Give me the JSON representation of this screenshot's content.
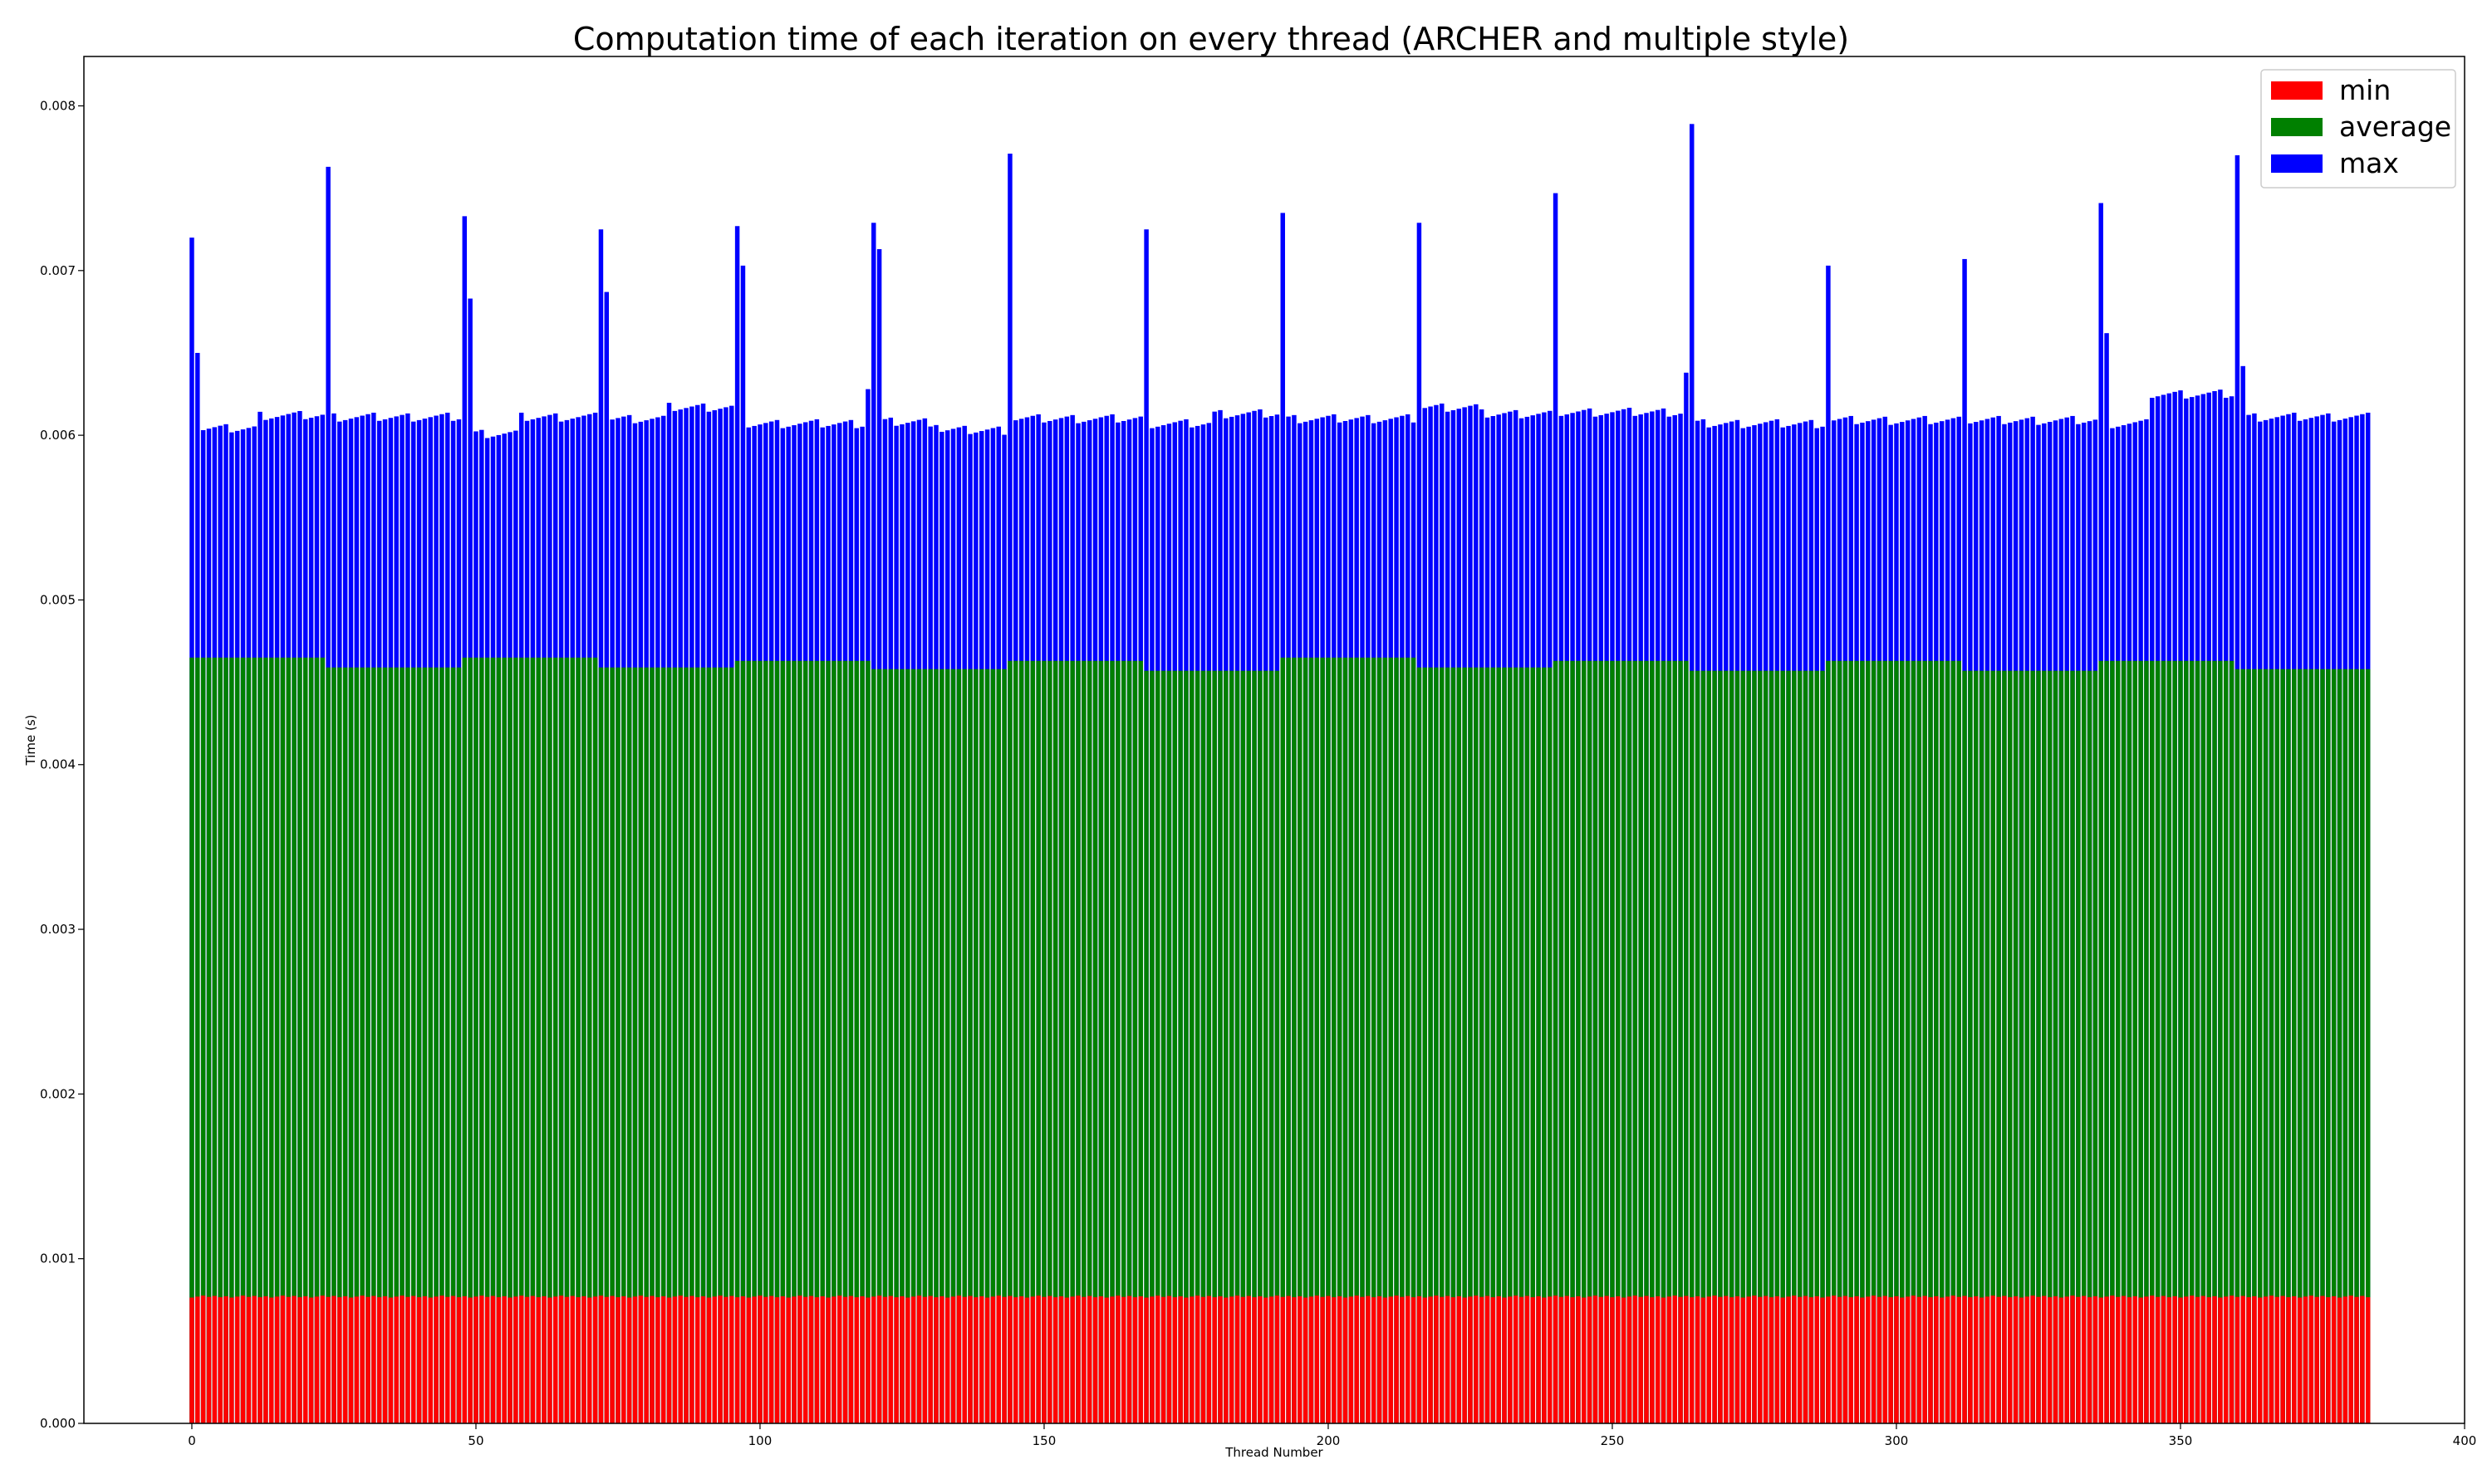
{
  "chart_data": {
    "type": "bar",
    "stacked": true,
    "title": "Computation time of each iteration on every thread (ARCHER and multiple style)",
    "xlabel": "Thread Number",
    "ylabel": "Time (s)",
    "xlim": [
      -19,
      400
    ],
    "ylim": [
      0,
      0.0083
    ],
    "xticks": [
      0,
      50,
      100,
      150,
      200,
      250,
      300,
      350,
      400
    ],
    "yticks": [
      0.0,
      0.001,
      0.002,
      0.003,
      0.004,
      0.005,
      0.006,
      0.007,
      0.008
    ],
    "ytick_labels": [
      "0.000",
      "0.001",
      "0.002",
      "0.003",
      "0.004",
      "0.005",
      "0.006",
      "0.007",
      "0.008"
    ],
    "legend_position": "top-right",
    "colors": {
      "min": "#ff0000",
      "average": "#008000",
      "max": "#0000ff"
    },
    "series": [
      {
        "name": "min",
        "color": "#ff0000",
        "base_value": 0.00077,
        "x_range": [
          0,
          383
        ]
      },
      {
        "name": "average",
        "color": "#008000",
        "value_by_block_of_24": [
          0.00465,
          0.00459,
          0.00465,
          0.00459,
          0.00463,
          0.00458,
          0.00463,
          0.00457,
          0.00465,
          0.00459,
          0.00463,
          0.00457,
          0.00463,
          0.00457,
          0.00463,
          0.00458
        ],
        "x_range": [
          0,
          383
        ]
      },
      {
        "name": "max",
        "color": "#0000ff",
        "typical_value": 0.0061,
        "x_range": [
          0,
          383
        ]
      }
    ],
    "max_spikes": [
      {
        "thread": 0,
        "value": 0.0072
      },
      {
        "thread": 1,
        "value": 0.0065
      },
      {
        "thread": 24,
        "value": 0.00763
      },
      {
        "thread": 48,
        "value": 0.00733
      },
      {
        "thread": 49,
        "value": 0.00683
      },
      {
        "thread": 72,
        "value": 0.00725
      },
      {
        "thread": 73,
        "value": 0.00687
      },
      {
        "thread": 96,
        "value": 0.00727
      },
      {
        "thread": 97,
        "value": 0.00703
      },
      {
        "thread": 119,
        "value": 0.00628
      },
      {
        "thread": 120,
        "value": 0.00729
      },
      {
        "thread": 121,
        "value": 0.00713
      },
      {
        "thread": 144,
        "value": 0.00771
      },
      {
        "thread": 168,
        "value": 0.00725
      },
      {
        "thread": 192,
        "value": 0.00735
      },
      {
        "thread": 216,
        "value": 0.00729
      },
      {
        "thread": 240,
        "value": 0.00747
      },
      {
        "thread": 263,
        "value": 0.00638
      },
      {
        "thread": 264,
        "value": 0.00789
      },
      {
        "thread": 288,
        "value": 0.00703
      },
      {
        "thread": 312,
        "value": 0.00707
      },
      {
        "thread": 336,
        "value": 0.00741
      },
      {
        "thread": 337,
        "value": 0.00662
      },
      {
        "thread": 360,
        "value": 0.0077
      },
      {
        "thread": 361,
        "value": 0.00642
      }
    ],
    "max_level_by_segment": [
      {
        "from": 2,
        "to": 11,
        "value": 0.00604
      },
      {
        "from": 12,
        "to": 23,
        "value": 0.00612
      },
      {
        "from": 25,
        "to": 47,
        "value": 0.00611
      },
      {
        "from": 50,
        "to": 57,
        "value": 0.00601
      },
      {
        "from": 58,
        "to": 71,
        "value": 0.00611
      },
      {
        "from": 74,
        "to": 83,
        "value": 0.0061
      },
      {
        "from": 84,
        "to": 95,
        "value": 0.00617
      },
      {
        "from": 98,
        "to": 118,
        "value": 0.00607
      },
      {
        "from": 122,
        "to": 131,
        "value": 0.00608
      },
      {
        "from": 132,
        "to": 143,
        "value": 0.00603
      },
      {
        "from": 145,
        "to": 167,
        "value": 0.0061
      },
      {
        "from": 169,
        "to": 179,
        "value": 0.00607
      },
      {
        "from": 180,
        "to": 191,
        "value": 0.00613
      },
      {
        "from": 193,
        "to": 215,
        "value": 0.0061
      },
      {
        "from": 217,
        "to": 226,
        "value": 0.00617
      },
      {
        "from": 227,
        "to": 239,
        "value": 0.00613
      },
      {
        "from": 241,
        "to": 262,
        "value": 0.00614
      },
      {
        "from": 265,
        "to": 287,
        "value": 0.00607
      },
      {
        "from": 289,
        "to": 311,
        "value": 0.00609
      },
      {
        "from": 313,
        "to": 335,
        "value": 0.00609
      },
      {
        "from": 338,
        "to": 344,
        "value": 0.00607
      },
      {
        "from": 345,
        "to": 359,
        "value": 0.00625
      },
      {
        "from": 362,
        "to": 383,
        "value": 0.00611
      }
    ]
  }
}
